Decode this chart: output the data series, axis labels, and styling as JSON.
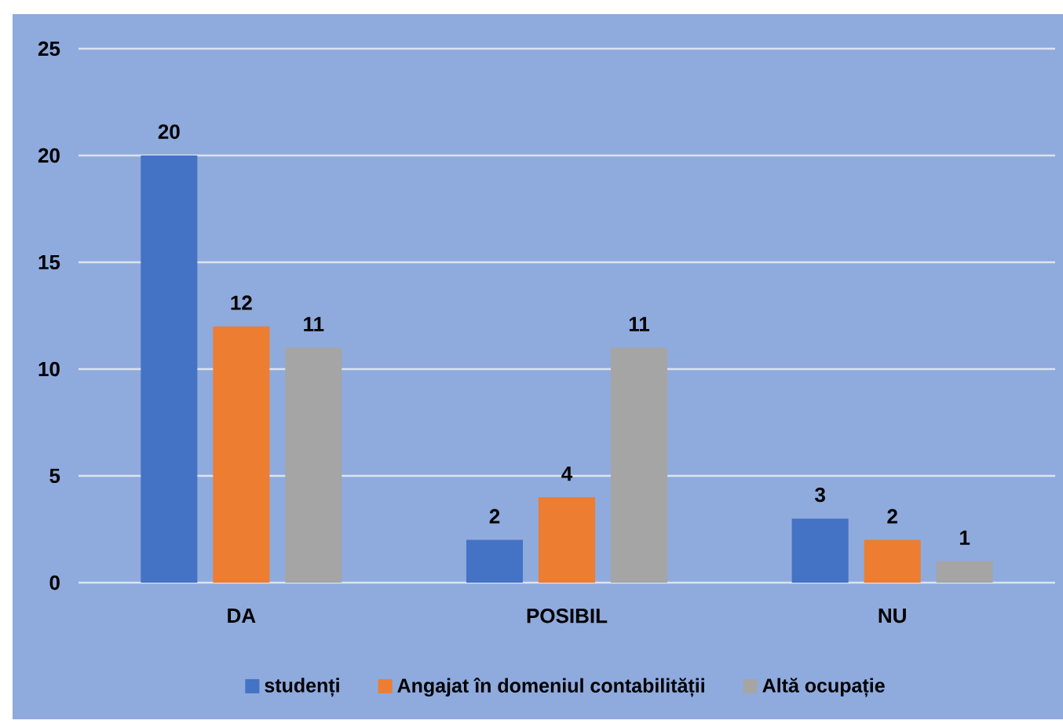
{
  "chart_data": {
    "type": "bar",
    "categories": [
      "DA",
      "POSIBIL",
      "NU"
    ],
    "series": [
      {
        "name": "studenți",
        "color": "#4472c4",
        "values": [
          20,
          2,
          3
        ]
      },
      {
        "name": "Angajat în domeniul contabilității",
        "color": "#ed7d31",
        "values": [
          12,
          4,
          2
        ]
      },
      {
        "name": "Altă ocupație",
        "color": "#a5a5a5",
        "values": [
          11,
          11,
          1
        ]
      }
    ],
    "ylim": [
      0,
      25
    ],
    "yticks": [
      0,
      5,
      10,
      15,
      20,
      25
    ],
    "grid": "y",
    "legend": "bottom",
    "data_labels": true
  }
}
